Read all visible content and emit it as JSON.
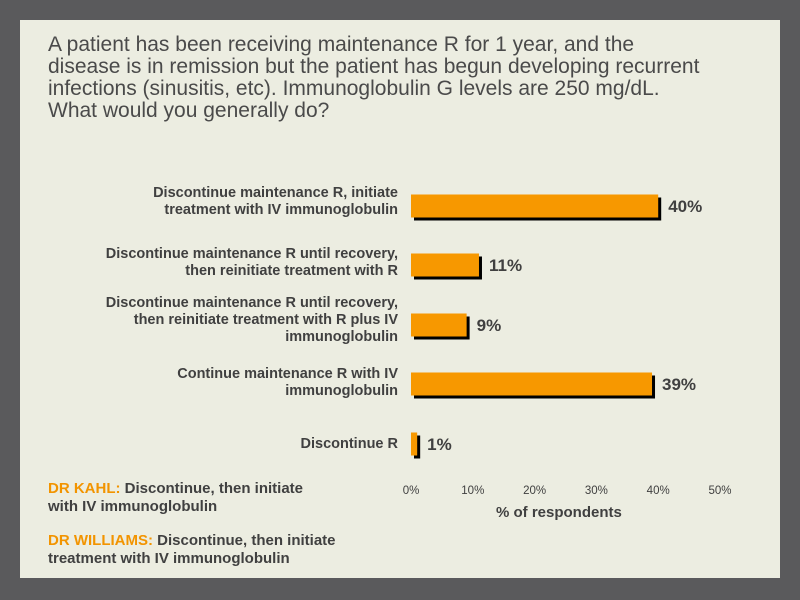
{
  "question": {
    "lines": [
      "A patient has been receiving maintenance R for 1 year, and the",
      "disease is in remission but the patient has begun developing recurrent",
      "infections (sinusitis, etc). Immunoglobulin G levels are 250 mg/dL.",
      "What would you generally do?"
    ]
  },
  "chart_data": {
    "type": "bar",
    "orientation": "horizontal",
    "categories": [
      [
        "Discontinue maintenance R, initiate",
        "treatment with IV immunoglobulin"
      ],
      [
        "Discontinue maintenance R until recovery,",
        "then reinitiate treatment with R"
      ],
      [
        "Discontinue maintenance R until recovery,",
        "then reinitiate treatment with R plus IV",
        "immunoglobulin"
      ],
      [
        "Continue maintenance R with IV",
        "immunoglobulin"
      ],
      [
        "Discontinue R"
      ]
    ],
    "values": [
      40,
      11,
      9,
      39,
      1
    ],
    "value_labels": [
      "40%",
      "11%",
      "9%",
      "39%",
      "1%"
    ],
    "xticks": [
      "0%",
      "10%",
      "20%",
      "30%",
      "40%",
      "50%"
    ],
    "xlim": [
      0,
      50
    ],
    "xlabel": "% of respondents",
    "bar_color": "#f79800",
    "grid": false
  },
  "experts": [
    {
      "name": "DR KAHL:",
      "lines": [
        "Discontinue, then initiate",
        "with IV immunoglobulin"
      ]
    },
    {
      "name": "DR WILLIAMS:",
      "lines": [
        "Discontinue, then initiate",
        "treatment with IV immunoglobulin"
      ]
    }
  ]
}
